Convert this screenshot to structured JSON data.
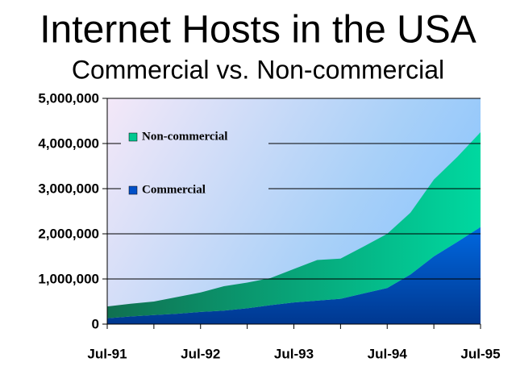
{
  "chart_data": {
    "type": "stacked_area",
    "title": "Internet Hosts in the USA",
    "subtitle": "Commercial vs. Non-commercial",
    "categories": [
      "Jul-91",
      null,
      null,
      null,
      "Jul-92",
      null,
      null,
      null,
      "Jul-93",
      null,
      null,
      null,
      "Jul-94",
      null,
      null,
      null,
      "Jul-95"
    ],
    "series": [
      {
        "name": "Commercial",
        "color": "#0050c8",
        "values": [
          130000,
          170000,
          200000,
          230000,
          270000,
          300000,
          350000,
          420000,
          480000,
          520000,
          560000,
          680000,
          800000,
          1100000,
          1500000,
          1820000,
          2150000
        ]
      },
      {
        "name": "Non-commercial",
        "color": "#00c890",
        "values": [
          260000,
          280000,
          300000,
          370000,
          430000,
          540000,
          570000,
          600000,
          740000,
          900000,
          890000,
          1040000,
          1200000,
          1370000,
          1700000,
          1880000,
          2100000
        ]
      }
    ],
    "ylim": [
      0,
      5000000
    ],
    "yticks": [
      0,
      {
        "value": 1000000,
        "label": "1,000,000"
      },
      {
        "value": 2000000,
        "label": "2,000,000"
      },
      {
        "value": 3000000,
        "label": "3,000,000"
      },
      {
        "value": 4000000,
        "label": "4,000,000"
      },
      {
        "value": 5000000,
        "label": "5,000,000"
      }
    ],
    "grid": true,
    "legend": "upper-left"
  }
}
